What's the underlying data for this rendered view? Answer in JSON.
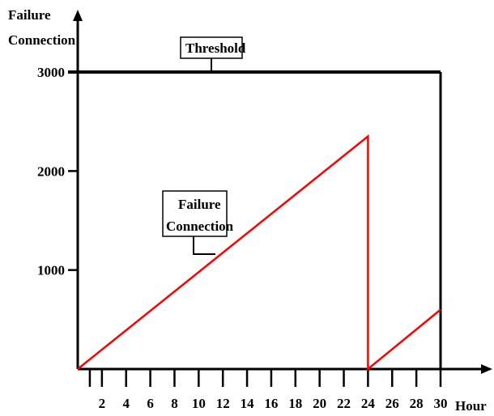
{
  "chart_data": {
    "type": "line",
    "ylabel_line1": "Failure",
    "ylabel_line2": "Connection",
    "xlabel": "Hour",
    "xlim": [
      0,
      30
    ],
    "ylim": [
      0,
      3000
    ],
    "x_ticks": [
      2,
      4,
      6,
      8,
      10,
      12,
      14,
      16,
      18,
      20,
      22,
      24,
      26,
      28,
      30
    ],
    "y_ticks": [
      1000,
      2000,
      3000
    ],
    "threshold": {
      "label": "Threshold",
      "value": 3000
    },
    "series": [
      {
        "name": "Failure Connection",
        "color": "#ff0000",
        "points": [
          [
            0,
            0
          ],
          [
            24,
            2350
          ],
          [
            24,
            0
          ],
          [
            30,
            600
          ]
        ]
      }
    ],
    "callouts": [
      {
        "lines": [
          "Failure",
          "Connection"
        ]
      }
    ],
    "colors": {
      "axis": "#000000",
      "series": "#ff0000"
    }
  }
}
